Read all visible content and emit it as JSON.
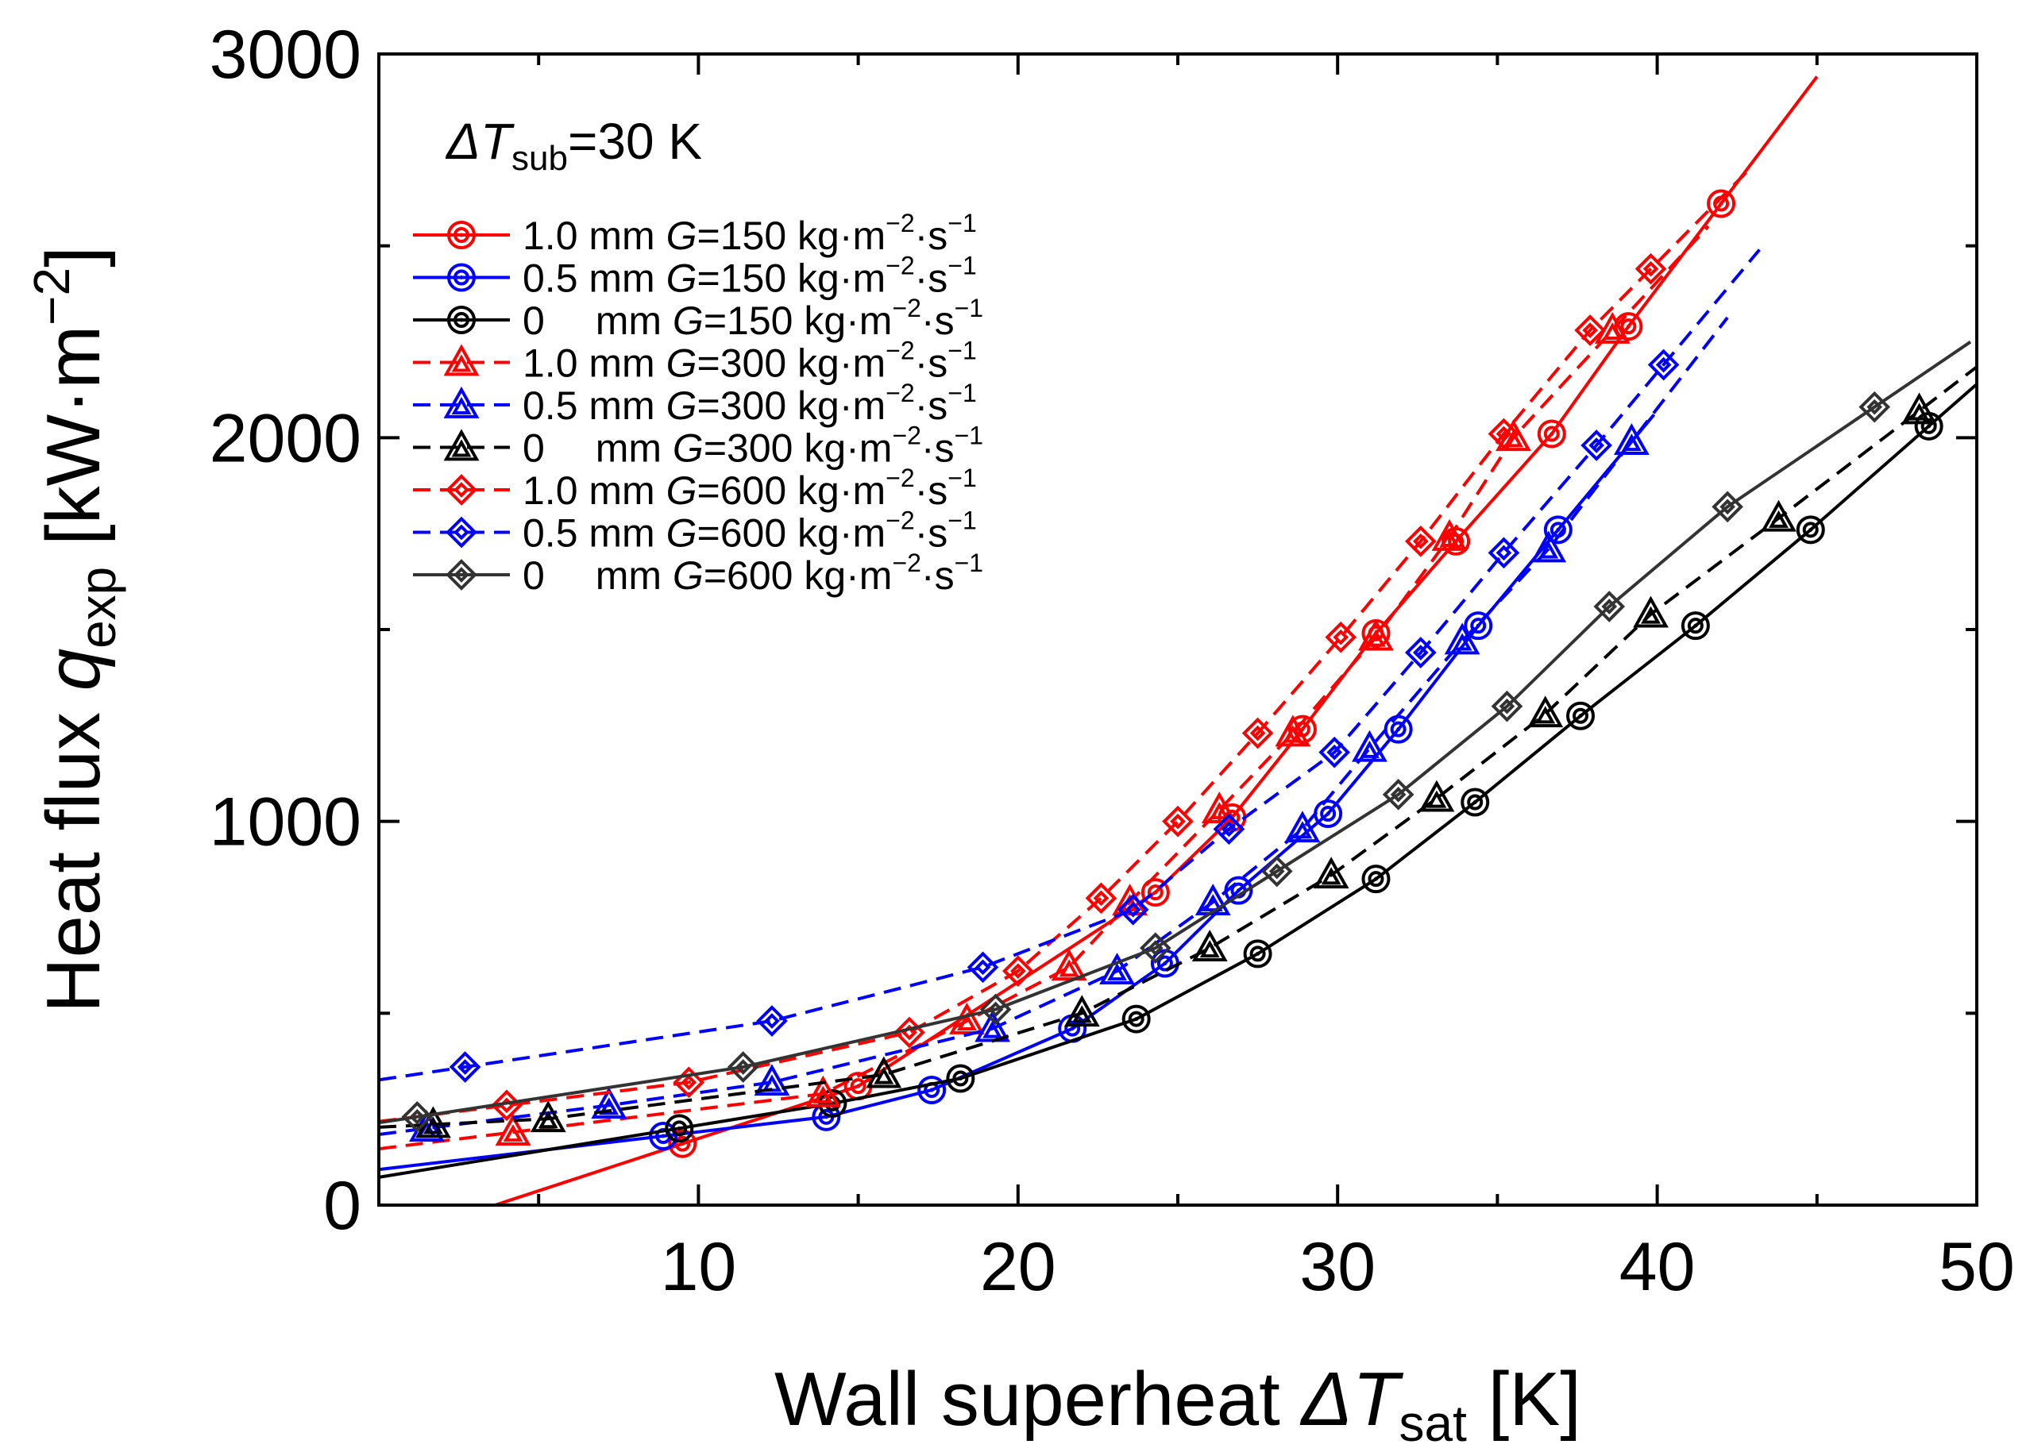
{
  "chart_data": {
    "type": "line",
    "title": "",
    "annotation": {
      "prefix": "Δ",
      "var": "T",
      "sub": "sub",
      "suffix": "=30 K"
    },
    "xlabel": {
      "text": "Wall superheat ",
      "symbol": "Δ",
      "var": "T",
      "sub": "sat",
      "unit": " [K]"
    },
    "ylabel": {
      "text": "Heat flux ",
      "var": "q",
      "sub": "exp",
      "unit_pre": " [kW·m",
      "unit_sup": "−2",
      "unit_post": "]"
    },
    "xlim": [
      0,
      50
    ],
    "ylim": [
      0,
      3000
    ],
    "xticks": [
      10,
      20,
      30,
      40,
      50
    ],
    "yticks": [
      0,
      1000,
      2000,
      3000
    ],
    "xtick_labels": [
      "10",
      "20",
      "30",
      "40",
      "50"
    ],
    "ytick_labels": [
      "0",
      "1000",
      "2000",
      "3000"
    ],
    "legend_placement": "upper-left",
    "series": [
      {
        "name": "1.0 mm G=150",
        "gap": "1.0 mm ",
        "G": "=150 kg·m",
        "units_tail": "·s",
        "exp1": "−2",
        "exp2": "−1",
        "color": "#ff0000",
        "dash": "solid",
        "marker": "circle",
        "x": [
          9.5,
          15.0,
          24.3,
          26.7,
          28.9,
          31.2,
          33.7,
          36.7,
          39.1,
          42.0
        ],
        "y": [
          160,
          310,
          815,
          1010,
          1240,
          1490,
          1730,
          2010,
          2290,
          2610
        ]
      },
      {
        "name": "0.5 mm G=150",
        "gap": "0.5 mm ",
        "G": "=150 kg·m",
        "units_tail": "·s",
        "exp1": "−2",
        "exp2": "−1",
        "color": "#0000ff",
        "dash": "solid",
        "marker": "circle",
        "x": [
          8.9,
          14.0,
          17.3,
          21.7,
          24.6,
          26.9,
          29.7,
          31.9,
          34.4,
          36.9
        ],
        "y": [
          180,
          230,
          300,
          460,
          630,
          820,
          1020,
          1240,
          1510,
          1760
        ]
      },
      {
        "name": "0 mm G=150",
        "gap": "0  mm ",
        "G": "=150 kg·m",
        "units_tail": "·s",
        "exp1": "−2",
        "exp2": "−1",
        "color": "#000000",
        "dash": "solid",
        "marker": "circle",
        "x": [
          9.4,
          14.2,
          18.2,
          23.7,
          27.5,
          31.2,
          34.3,
          37.6,
          41.2,
          44.8,
          48.5
        ],
        "y": [
          200,
          265,
          330,
          485,
          655,
          850,
          1050,
          1275,
          1510,
          1760,
          2030
        ]
      },
      {
        "name": "1.0 mm G=300",
        "gap": "1.0 mm ",
        "G": "=300 kg·m",
        "units_tail": "·s",
        "exp1": "−2",
        "exp2": "−1",
        "color": "#ff0000",
        "dash": "dashed",
        "marker": "triangle",
        "x": [
          4.2,
          13.9,
          18.4,
          21.6,
          23.5,
          26.3,
          28.6,
          31.2,
          33.5,
          35.5,
          38.6
        ],
        "y": [
          190,
          290,
          480,
          620,
          790,
          1030,
          1230,
          1480,
          1740,
          2000,
          2280
        ]
      },
      {
        "name": "0.5 mm G=300",
        "gap": "0.5 mm ",
        "G": "=300 kg·m",
        "units_tail": "·s",
        "exp1": "−2",
        "exp2": "−1",
        "color": "#0000ff",
        "dash": "dashed",
        "marker": "triangle",
        "x": [
          1.5,
          7.2,
          12.3,
          19.2,
          23.1,
          26.1,
          28.9,
          31.0,
          33.9,
          36.6,
          39.2
        ],
        "y": [
          200,
          260,
          320,
          460,
          610,
          790,
          980,
          1190,
          1470,
          1710,
          1990
        ]
      },
      {
        "name": "0 mm G=300",
        "gap": "0  mm ",
        "G": "=300 kg·m",
        "units_tail": "·s",
        "exp1": "−2",
        "exp2": "−1",
        "color": "#000000",
        "dash": "dashed",
        "marker": "triangle",
        "x": [
          1.7,
          5.3,
          15.8,
          22.0,
          26.0,
          29.8,
          33.1,
          36.5,
          39.8,
          43.8,
          48.2
        ],
        "y": [
          210,
          225,
          340,
          500,
          670,
          860,
          1060,
          1280,
          1540,
          1790,
          2070
        ]
      },
      {
        "name": "1.0 mm G=600",
        "gap": "1.0 mm ",
        "G": "=600 kg·m",
        "units_tail": "·s",
        "exp1": "−2",
        "exp2": "−1",
        "color": "#ff0000",
        "dash": "dashed",
        "marker": "diamond",
        "x": [
          4.0,
          9.7,
          16.6,
          20.0,
          22.6,
          25.0,
          27.5,
          30.1,
          32.6,
          35.2,
          37.9,
          39.8
        ],
        "y": [
          260,
          320,
          450,
          610,
          800,
          1000,
          1230,
          1480,
          1730,
          2010,
          2280,
          2440
        ]
      },
      {
        "name": "0.5 mm G=600",
        "gap": "0.5 mm ",
        "G": "=600 kg·m",
        "units_tail": "·s",
        "exp1": "−2",
        "exp2": "−1",
        "color": "#0000ff",
        "dash": "dashed",
        "marker": "diamond",
        "x": [
          2.7,
          12.3,
          18.9,
          23.6,
          26.6,
          29.9,
          32.6,
          35.2,
          38.1,
          40.2
        ],
        "y": [
          360,
          480,
          620,
          770,
          980,
          1180,
          1440,
          1700,
          1980,
          2190
        ]
      },
      {
        "name": "0 mm G=600",
        "gap": "0  mm ",
        "G": "=600 kg·m",
        "units_tail": "·s",
        "exp1": "−2",
        "exp2": "−1",
        "color": "#333333",
        "dash": "solid",
        "marker": "diamond",
        "x": [
          1.2,
          11.4,
          19.3,
          24.3,
          28.1,
          31.9,
          35.3,
          38.5,
          42.2,
          46.8
        ],
        "y": [
          230,
          360,
          510,
          670,
          870,
          1070,
          1300,
          1560,
          1820,
          2080
        ]
      }
    ]
  }
}
